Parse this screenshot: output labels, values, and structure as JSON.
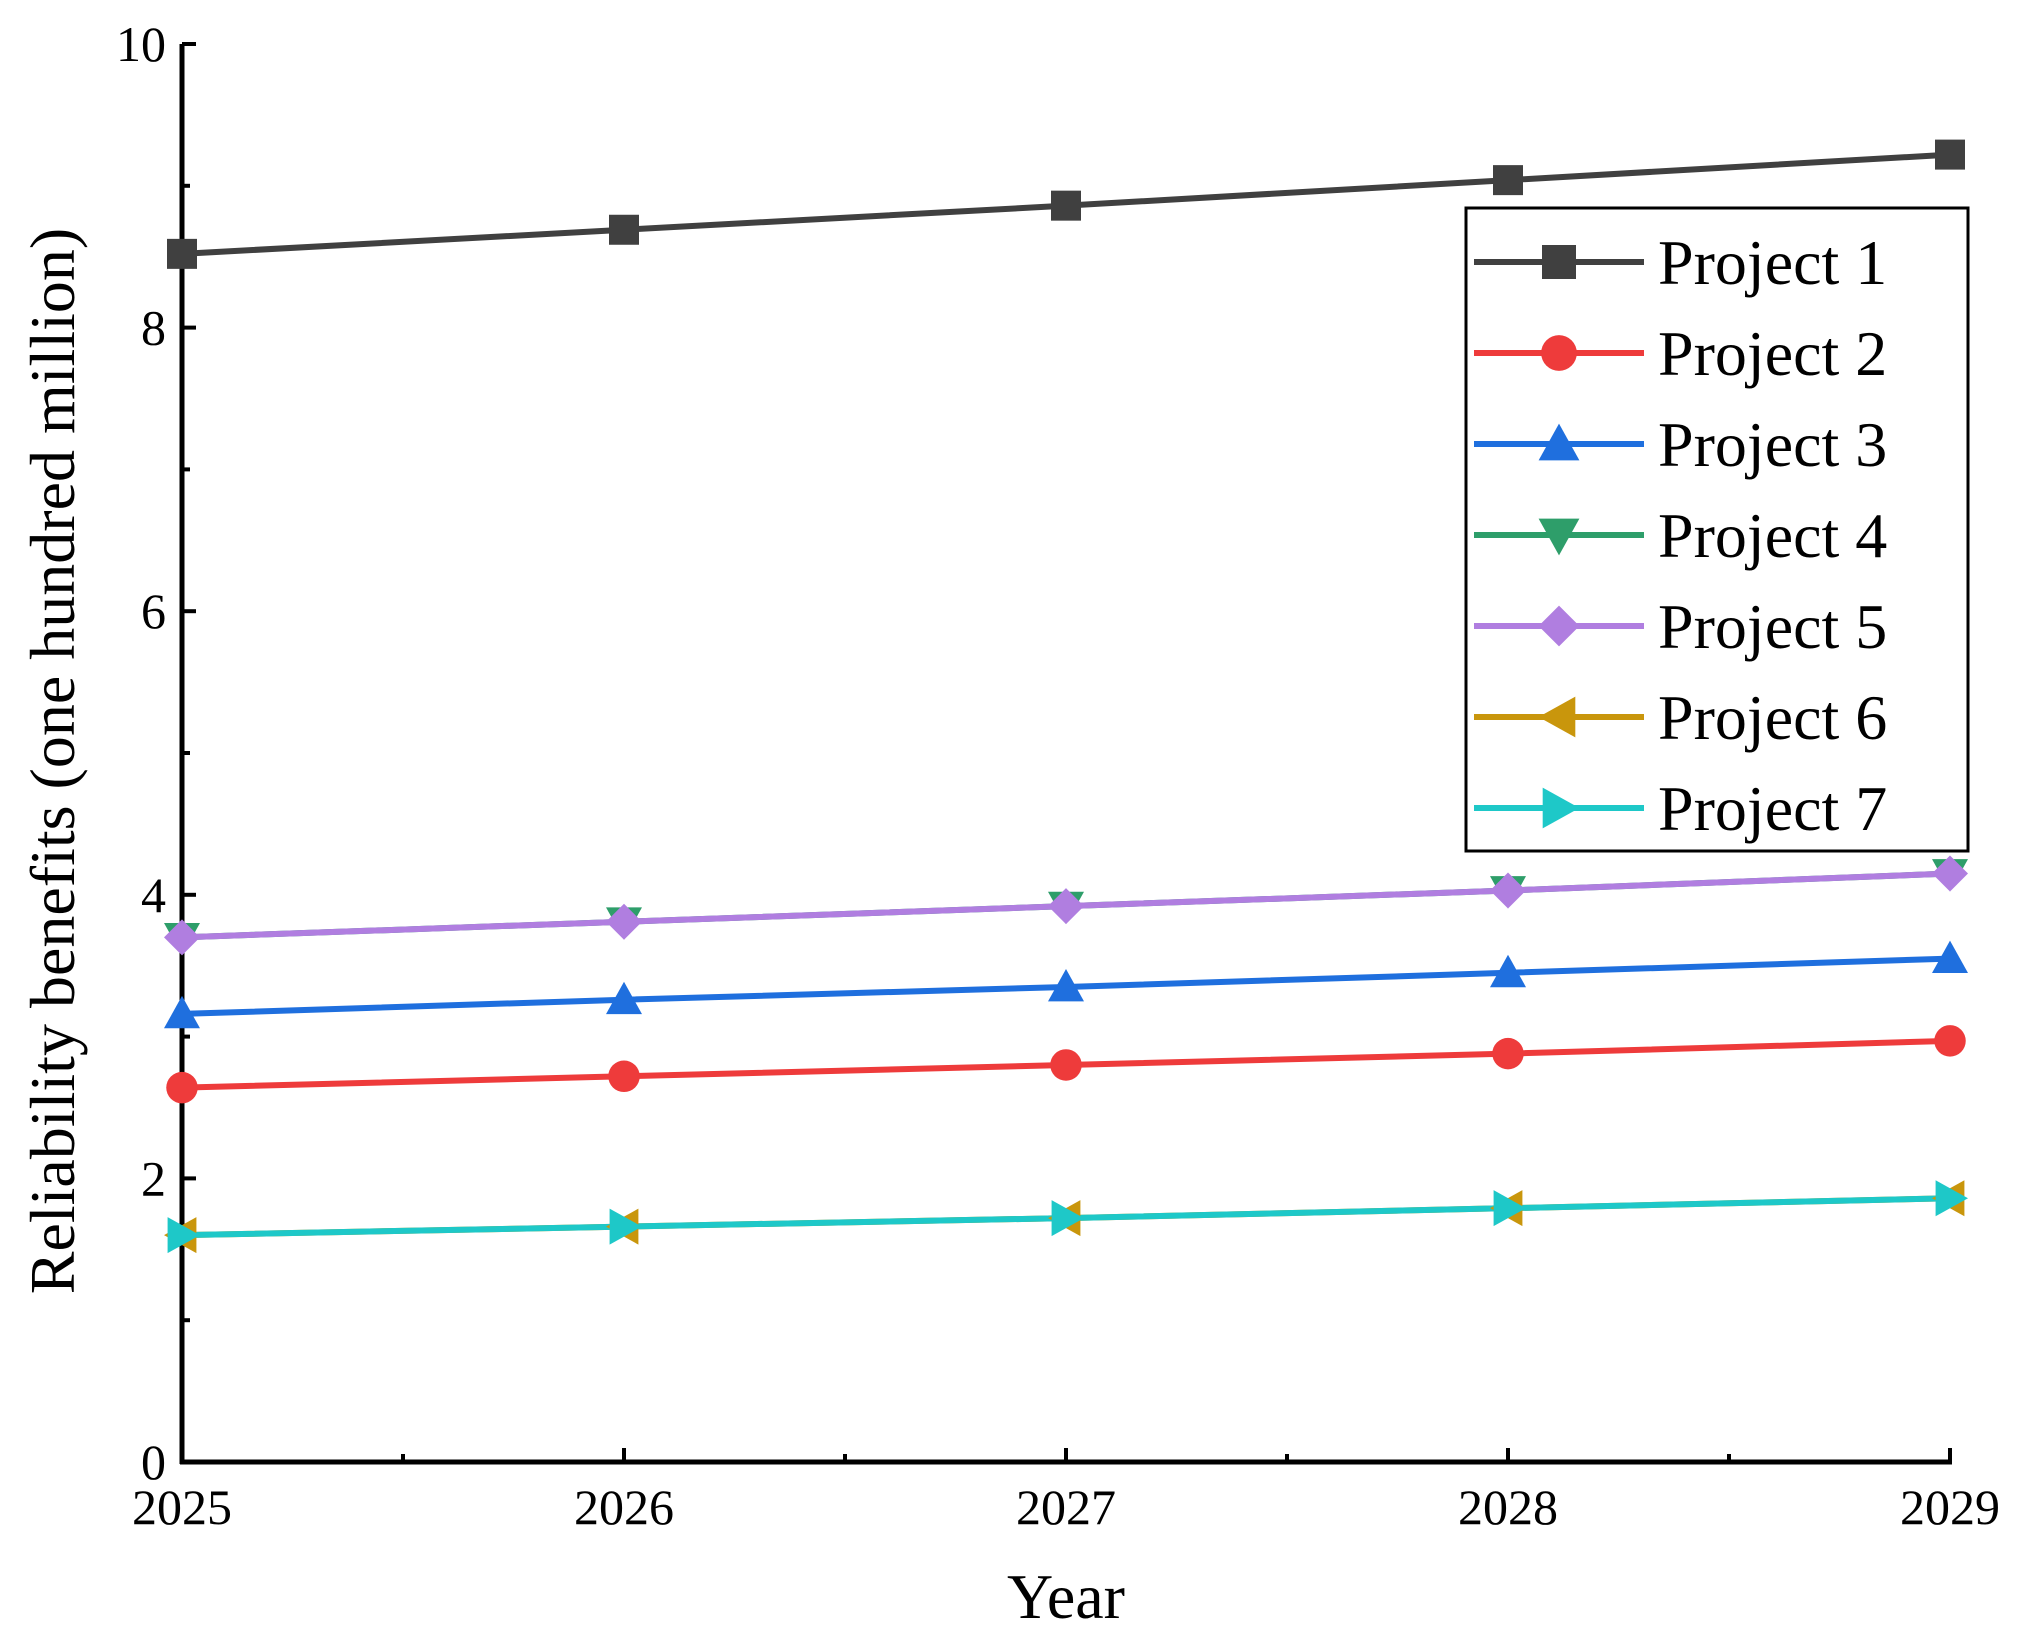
{
  "chart_data": {
    "type": "line",
    "title": "",
    "xlabel": "Year",
    "ylabel": "Reliability benefits (one hundred million)",
    "x": [
      2025,
      2026,
      2027,
      2028,
      2029
    ],
    "xticks": [
      "2025",
      "2026",
      "2027",
      "2028",
      "2029"
    ],
    "xlim": [
      2025,
      2029
    ],
    "ylim": [
      0,
      10
    ],
    "yticks": [
      "0",
      "2",
      "4",
      "6",
      "8",
      "10"
    ],
    "grid": false,
    "legend_position": "top-right",
    "series": [
      {
        "name": "Project 1",
        "color": "#404040",
        "marker": "square",
        "values": [
          8.52,
          8.69,
          8.86,
          9.04,
          9.22
        ]
      },
      {
        "name": "Project 2",
        "color": "#ee3b3b",
        "marker": "circle",
        "values": [
          2.64,
          2.72,
          2.8,
          2.88,
          2.97
        ]
      },
      {
        "name": "Project 3",
        "color": "#1f6fde",
        "marker": "triangle-up",
        "values": [
          3.16,
          3.26,
          3.35,
          3.45,
          3.55
        ]
      },
      {
        "name": "Project 4",
        "color": "#2e9e6a",
        "marker": "triangle-down",
        "values": [
          3.7,
          3.81,
          3.92,
          4.03,
          4.15
        ]
      },
      {
        "name": "Project 5",
        "color": "#b07ee0",
        "marker": "diamond",
        "values": [
          3.7,
          3.81,
          3.92,
          4.03,
          4.15
        ]
      },
      {
        "name": "Project 6",
        "color": "#c9960c",
        "marker": "triangle-left",
        "values": [
          1.6,
          1.66,
          1.72,
          1.79,
          1.86
        ]
      },
      {
        "name": "Project 7",
        "color": "#1ec8c8",
        "marker": "triangle-right",
        "values": [
          1.6,
          1.66,
          1.72,
          1.79,
          1.86
        ]
      }
    ]
  }
}
